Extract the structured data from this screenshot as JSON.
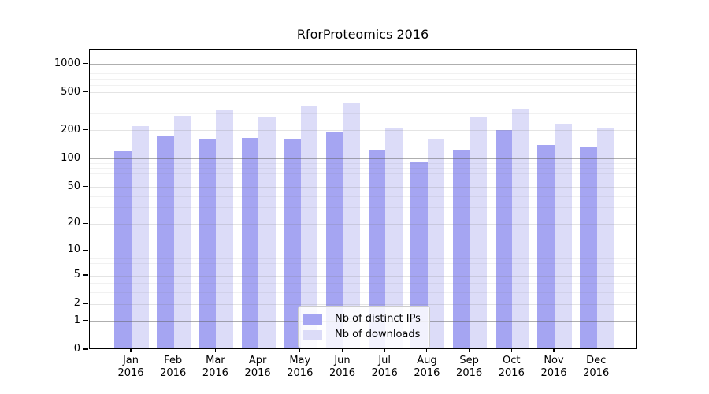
{
  "chart_data": {
    "type": "bar",
    "title": "RforProteomics 2016",
    "year_label": "2016",
    "categories": [
      "Jan",
      "Feb",
      "Mar",
      "Apr",
      "May",
      "Jun",
      "Jul",
      "Aug",
      "Sep",
      "Oct",
      "Nov",
      "Dec"
    ],
    "series": [
      {
        "name": "Nb of distinct IPs",
        "color": "#a5a5f2",
        "values": [
          119,
          169,
          157,
          162,
          159,
          188,
          122,
          91,
          122,
          197,
          136,
          129
        ]
      },
      {
        "name": "Nb of downloads",
        "color": "#dcdcf8",
        "values": [
          215,
          277,
          315,
          273,
          344,
          375,
          202,
          155,
          271,
          329,
          227,
          204
        ]
      }
    ],
    "yscale": "log1p",
    "ylim": [
      0,
      1430
    ],
    "ytick_values": [
      0,
      1,
      2,
      5,
      10,
      20,
      50,
      100,
      200,
      500,
      1000
    ],
    "ytick_labels": [
      "0",
      "1",
      "2",
      "5",
      "10",
      "20",
      "50",
      "100",
      "200",
      "500",
      "1000"
    ],
    "major_grid_values": [
      1,
      10,
      100,
      1000
    ],
    "mid_grid_values": [
      2,
      5,
      20,
      50,
      200,
      500
    ],
    "minor_grid_values": [
      3,
      4,
      6,
      7,
      8,
      9,
      30,
      40,
      60,
      70,
      80,
      90,
      300,
      400,
      600,
      700,
      800,
      900
    ],
    "grid": true,
    "legend_position": "lower center",
    "colors": {
      "axis": "#000000",
      "background": "#ffffff"
    }
  }
}
